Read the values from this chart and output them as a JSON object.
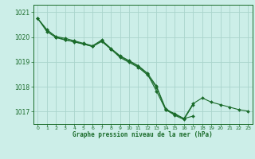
{
  "title": "Graphe pression niveau de la mer (hPa)",
  "bg_color": "#cceee8",
  "grid_color": "#aad4cc",
  "line_color": "#1a6b2a",
  "xlim": [
    -0.5,
    23.5
  ],
  "ylim": [
    1016.5,
    1021.3
  ],
  "yticks": [
    1017,
    1018,
    1019,
    1020,
    1021
  ],
  "xticks": [
    0,
    1,
    2,
    3,
    4,
    5,
    6,
    7,
    8,
    9,
    10,
    11,
    12,
    13,
    14,
    15,
    16,
    17,
    18,
    19,
    20,
    21,
    22,
    23
  ],
  "series": [
    [
      1020.75,
      1020.3,
      1020.0,
      1019.9,
      1019.8,
      1019.72,
      1019.62,
      1019.85,
      1019.52,
      1019.22,
      1019.02,
      1018.82,
      1018.52,
      1017.82,
      1017.08,
      1016.92,
      1016.72,
      1017.32,
      1017.55,
      1017.38,
      1017.28,
      1017.18,
      1017.08,
      1017.02
    ],
    [
      1020.75,
      1020.28,
      1020.02,
      1019.95,
      1019.85,
      1019.75,
      1019.65,
      1019.88,
      1019.55,
      1019.25,
      1019.05,
      1018.85,
      1018.55,
      1018.02,
      1017.12,
      1016.88,
      1016.72,
      1016.82,
      null,
      null,
      null,
      null,
      null,
      null
    ],
    [
      1020.75,
      1020.22,
      1019.98,
      1019.88,
      1019.82,
      1019.72,
      1019.62,
      1019.82,
      1019.52,
      1019.18,
      1018.98,
      1018.78,
      1018.48,
      1017.98,
      1017.08,
      1016.85,
      1016.68,
      1017.28,
      null,
      null,
      null,
      null,
      null,
      null
    ]
  ]
}
